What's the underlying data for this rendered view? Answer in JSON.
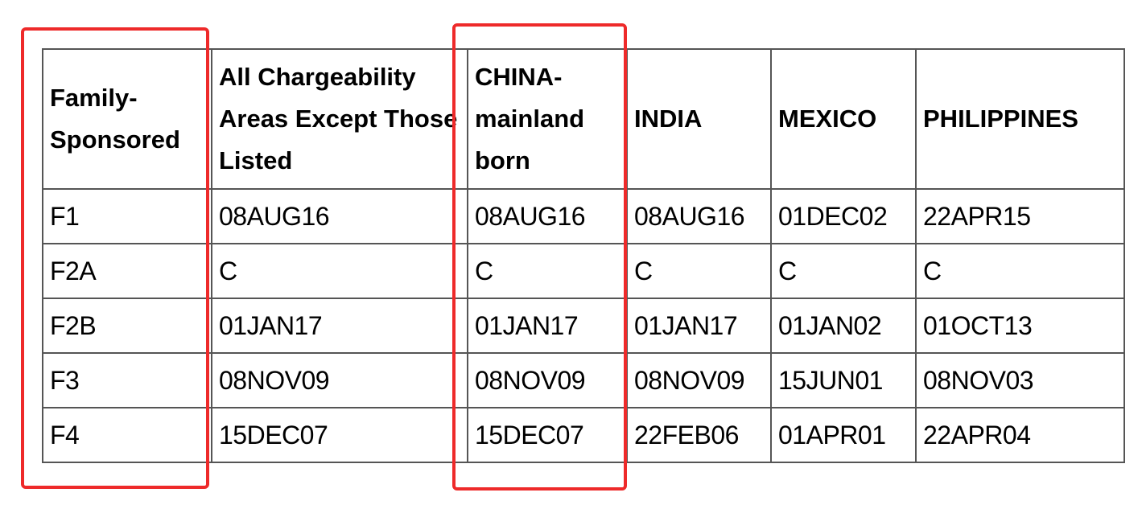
{
  "table": {
    "header": [
      "Family-Sponsored",
      "All Chargeability Areas Except Those Listed",
      "CHINA-mainland born",
      "INDIA",
      "MEXICO",
      "PHILIPPINES"
    ],
    "rows": [
      [
        "F1",
        "08AUG16",
        "08AUG16",
        "08AUG16",
        "01DEC02",
        "22APR15"
      ],
      [
        "F2A",
        "C",
        "C",
        "C",
        "C",
        "C"
      ],
      [
        "F2B",
        "01JAN17",
        "01JAN17",
        "01JAN17",
        "01JAN02",
        "01OCT13"
      ],
      [
        "F3",
        "08NOV09",
        "08NOV09",
        "08NOV09",
        "15JUN01",
        "08NOV03"
      ],
      [
        "F4",
        "15DEC07",
        "15DEC07",
        "22FEB06",
        "01APR01",
        "22APR04"
      ]
    ]
  }
}
